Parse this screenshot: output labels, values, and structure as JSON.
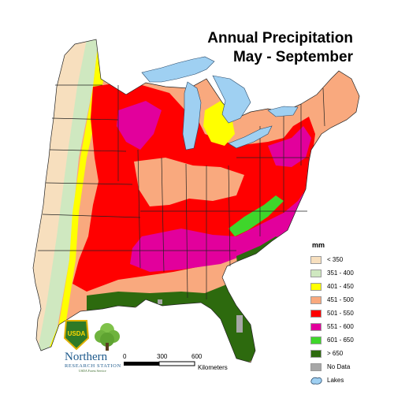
{
  "title": {
    "line1": "Annual Precipitation",
    "line2": "May - September"
  },
  "legend": {
    "units": "mm",
    "items": [
      {
        "label": "< 350",
        "color": "#f7dfbe"
      },
      {
        "label": "351 - 400",
        "color": "#cfe8c0"
      },
      {
        "label": "401 - 450",
        "color": "#ffff00"
      },
      {
        "label": "451 - 500",
        "color": "#f9a97e"
      },
      {
        "label": "501 - 550",
        "color": "#ff0000"
      },
      {
        "label": "551 - 600",
        "color": "#e2009c"
      },
      {
        "label": "601 - 650",
        "color": "#3fd62b"
      },
      {
        "label": "> 650",
        "color": "#2d6a0e"
      },
      {
        "label": "No Data",
        "color": "#a7a7a7"
      }
    ],
    "lakes_label": "Lakes",
    "lakes_color": "#9fd0f2"
  },
  "scale": {
    "ticks": [
      "0",
      "300",
      "600"
    ],
    "unit": "Kilometers"
  },
  "agency": {
    "name": "Northern",
    "station": "RESEARCH STATION",
    "service": "USDA Forest Service",
    "shield_text": "USDA"
  }
}
